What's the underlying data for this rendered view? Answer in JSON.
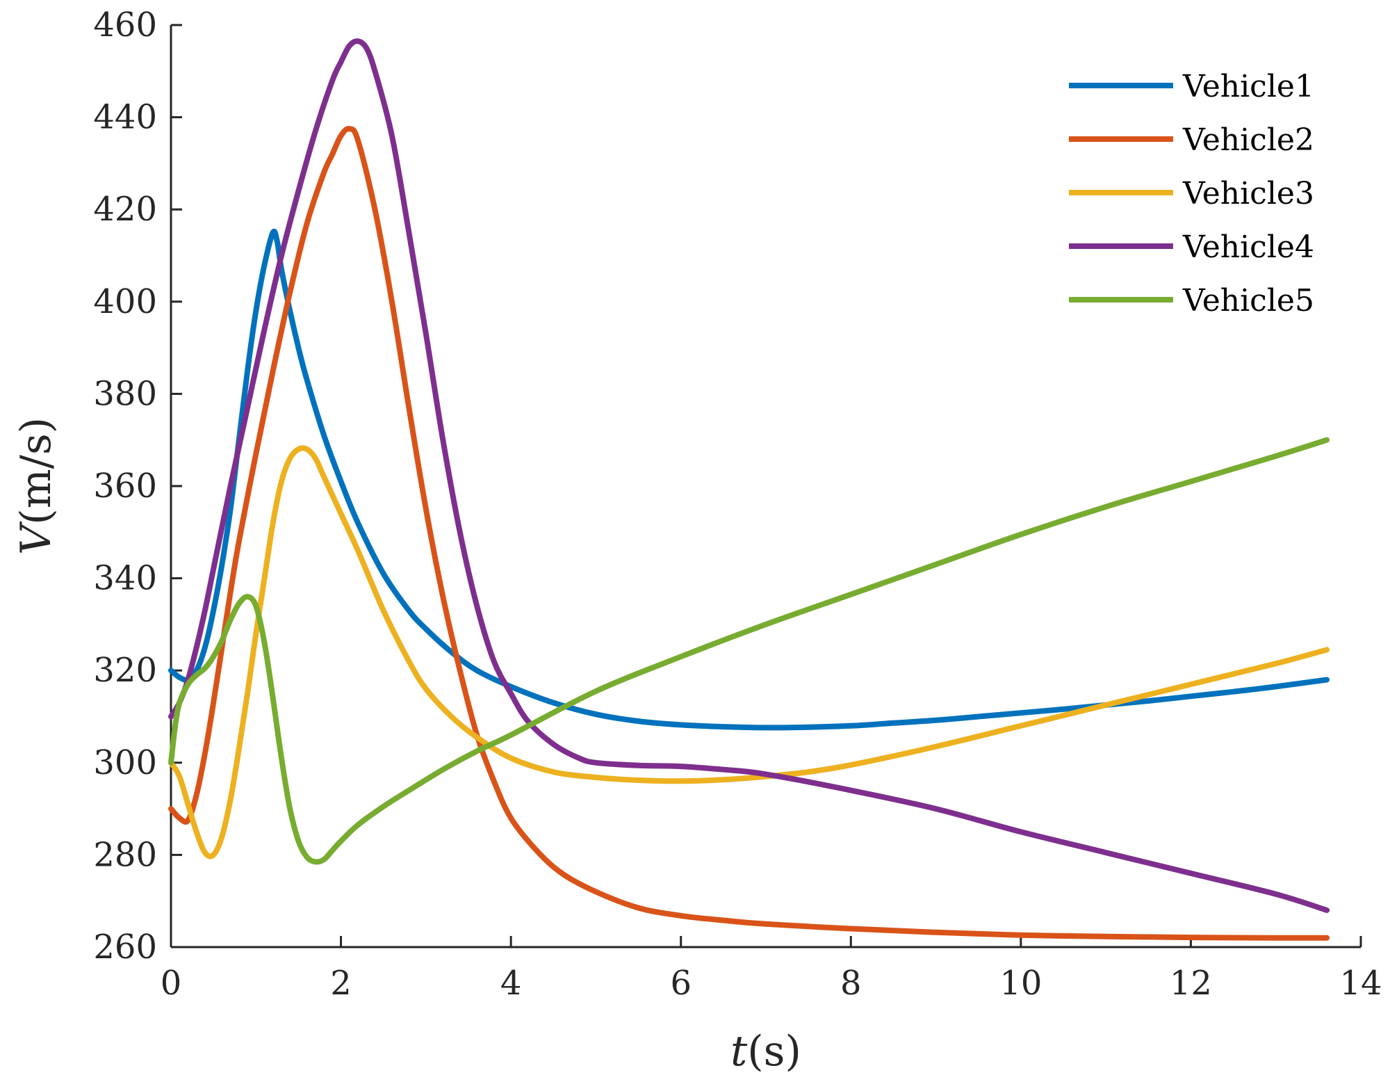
{
  "chart_data": {
    "type": "line",
    "title": "",
    "xlabel": {
      "var": "t",
      "unit": "(s)"
    },
    "ylabel": {
      "var": "V",
      "unit": "(m/s)"
    },
    "xlim": [
      0,
      14
    ],
    "ylim": [
      260,
      460
    ],
    "xticks": [
      0,
      2,
      4,
      6,
      8,
      10,
      12,
      14
    ],
    "yticks": [
      260,
      280,
      300,
      320,
      340,
      360,
      380,
      400,
      420,
      440,
      460
    ],
    "grid": false,
    "legend": "top-right",
    "series": [
      {
        "name": "Vehicle1",
        "color": "#0072BD",
        "x": [
          0,
          0.1,
          0.2,
          0.3,
          0.4,
          0.5,
          0.6,
          0.7,
          0.8,
          0.9,
          1.0,
          1.1,
          1.2,
          1.25,
          1.3,
          1.4,
          1.5,
          1.6,
          1.8,
          2.0,
          2.2,
          2.5,
          2.8,
          3.0,
          3.3,
          3.6,
          4.0,
          4.5,
          5.0,
          5.5,
          6.0,
          6.5,
          7.0,
          7.5,
          8.0,
          8.5,
          9.0,
          9.5,
          10.0,
          10.5,
          11.0,
          11.5,
          12.0,
          12.5,
          13.0,
          13.6
        ],
        "values": [
          320,
          318.5,
          318,
          320,
          325,
          333,
          343,
          355,
          370,
          385,
          398,
          408,
          415,
          413,
          407,
          398,
          390,
          383,
          371,
          361,
          352,
          341,
          333,
          329,
          324,
          320,
          316.5,
          313,
          310.5,
          309,
          308.2,
          307.8,
          307.6,
          307.7,
          308,
          308.6,
          309.2,
          310,
          310.8,
          311.6,
          312.5,
          313.4,
          314.4,
          315.4,
          316.5,
          318
        ]
      },
      {
        "name": "Vehicle2",
        "color": "#D95319",
        "x": [
          0,
          0.1,
          0.2,
          0.3,
          0.4,
          0.5,
          0.6,
          0.7,
          0.8,
          1.0,
          1.2,
          1.4,
          1.6,
          1.8,
          1.9,
          2.0,
          2.1,
          2.2,
          2.4,
          2.6,
          2.8,
          3.0,
          3.2,
          3.4,
          3.6,
          3.8,
          4.0,
          4.3,
          4.6,
          5.0,
          5.5,
          6.0,
          6.5,
          7.0,
          8.0,
          9.0,
          10.0,
          11.0,
          12.0,
          13.0,
          13.6
        ],
        "values": [
          290,
          288,
          287.5,
          293,
          302,
          313,
          325,
          337,
          348,
          367,
          385,
          402,
          417,
          428,
          432,
          436,
          437.5,
          435,
          420,
          400,
          377,
          355,
          336,
          320,
          306,
          296,
          288,
          281,
          276,
          272,
          268.5,
          266.8,
          265.8,
          265,
          264,
          263.2,
          262.6,
          262.3,
          262.1,
          262,
          262
        ]
      },
      {
        "name": "Vehicle3",
        "color": "#EDB120",
        "x": [
          0,
          0.1,
          0.2,
          0.3,
          0.4,
          0.5,
          0.6,
          0.7,
          0.8,
          0.9,
          1.0,
          1.1,
          1.2,
          1.3,
          1.4,
          1.5,
          1.6,
          1.7,
          1.8,
          2.0,
          2.2,
          2.5,
          2.8,
          3.0,
          3.3,
          3.6,
          4.0,
          4.5,
          5.0,
          5.5,
          6.0,
          6.5,
          7.0,
          7.5,
          8.0,
          9.0,
          10.0,
          11.0,
          12.0,
          13.0,
          13.6
        ],
        "values": [
          300,
          297,
          291,
          285,
          280.5,
          280,
          284,
          292,
          303,
          315,
          328,
          340,
          352,
          361,
          366,
          368,
          368,
          366,
          362,
          354,
          346,
          333,
          322,
          316,
          310,
          305.5,
          301,
          298,
          296.8,
          296.2,
          296,
          296.3,
          297,
          298,
          299.5,
          303.5,
          308,
          312.5,
          317,
          321.5,
          324.5
        ]
      },
      {
        "name": "Vehicle4",
        "color": "#7E2F8E",
        "x": [
          0,
          0.1,
          0.2,
          0.3,
          0.4,
          0.5,
          0.7,
          0.9,
          1.1,
          1.3,
          1.5,
          1.7,
          1.9,
          2.0,
          2.1,
          2.2,
          2.3,
          2.4,
          2.6,
          2.8,
          3.0,
          3.2,
          3.4,
          3.6,
          3.8,
          4.0,
          4.2,
          4.5,
          4.8,
          5.0,
          5.5,
          6.0,
          6.5,
          7.0,
          8.0,
          9.0,
          10.0,
          11.0,
          12.0,
          13.0,
          13.6
        ],
        "values": [
          310,
          313,
          318,
          325,
          333,
          342,
          360,
          377,
          394,
          410,
          424,
          437,
          448,
          452,
          455.5,
          456.5,
          455,
          450,
          436,
          415,
          393,
          370,
          350,
          334,
          322,
          315,
          309,
          304,
          301,
          300,
          299.4,
          299.2,
          298.5,
          297.5,
          294,
          290,
          285,
          280.5,
          276,
          271.5,
          268
        ]
      },
      {
        "name": "Vehicle5",
        "color": "#77AC30",
        "x": [
          0,
          0.05,
          0.1,
          0.2,
          0.3,
          0.4,
          0.5,
          0.6,
          0.7,
          0.8,
          0.9,
          1.0,
          1.1,
          1.2,
          1.3,
          1.4,
          1.5,
          1.6,
          1.7,
          1.8,
          1.9,
          2.0,
          2.2,
          2.5,
          2.8,
          3.2,
          3.6,
          4.0,
          5.0,
          6.0,
          7.0,
          8.0,
          9.0,
          10.0,
          11.0,
          12.0,
          13.0,
          13.6
        ],
        "values": [
          300,
          308,
          313,
          317,
          319,
          320.5,
          323,
          326.5,
          331,
          334.5,
          336,
          334,
          326,
          314,
          301,
          290,
          283,
          279.5,
          278.5,
          279,
          281,
          283,
          286.5,
          290.5,
          294,
          298.5,
          302.5,
          306,
          315.5,
          323,
          330,
          336.5,
          343,
          349.5,
          355.5,
          361,
          366.5,
          370
        ]
      }
    ]
  }
}
